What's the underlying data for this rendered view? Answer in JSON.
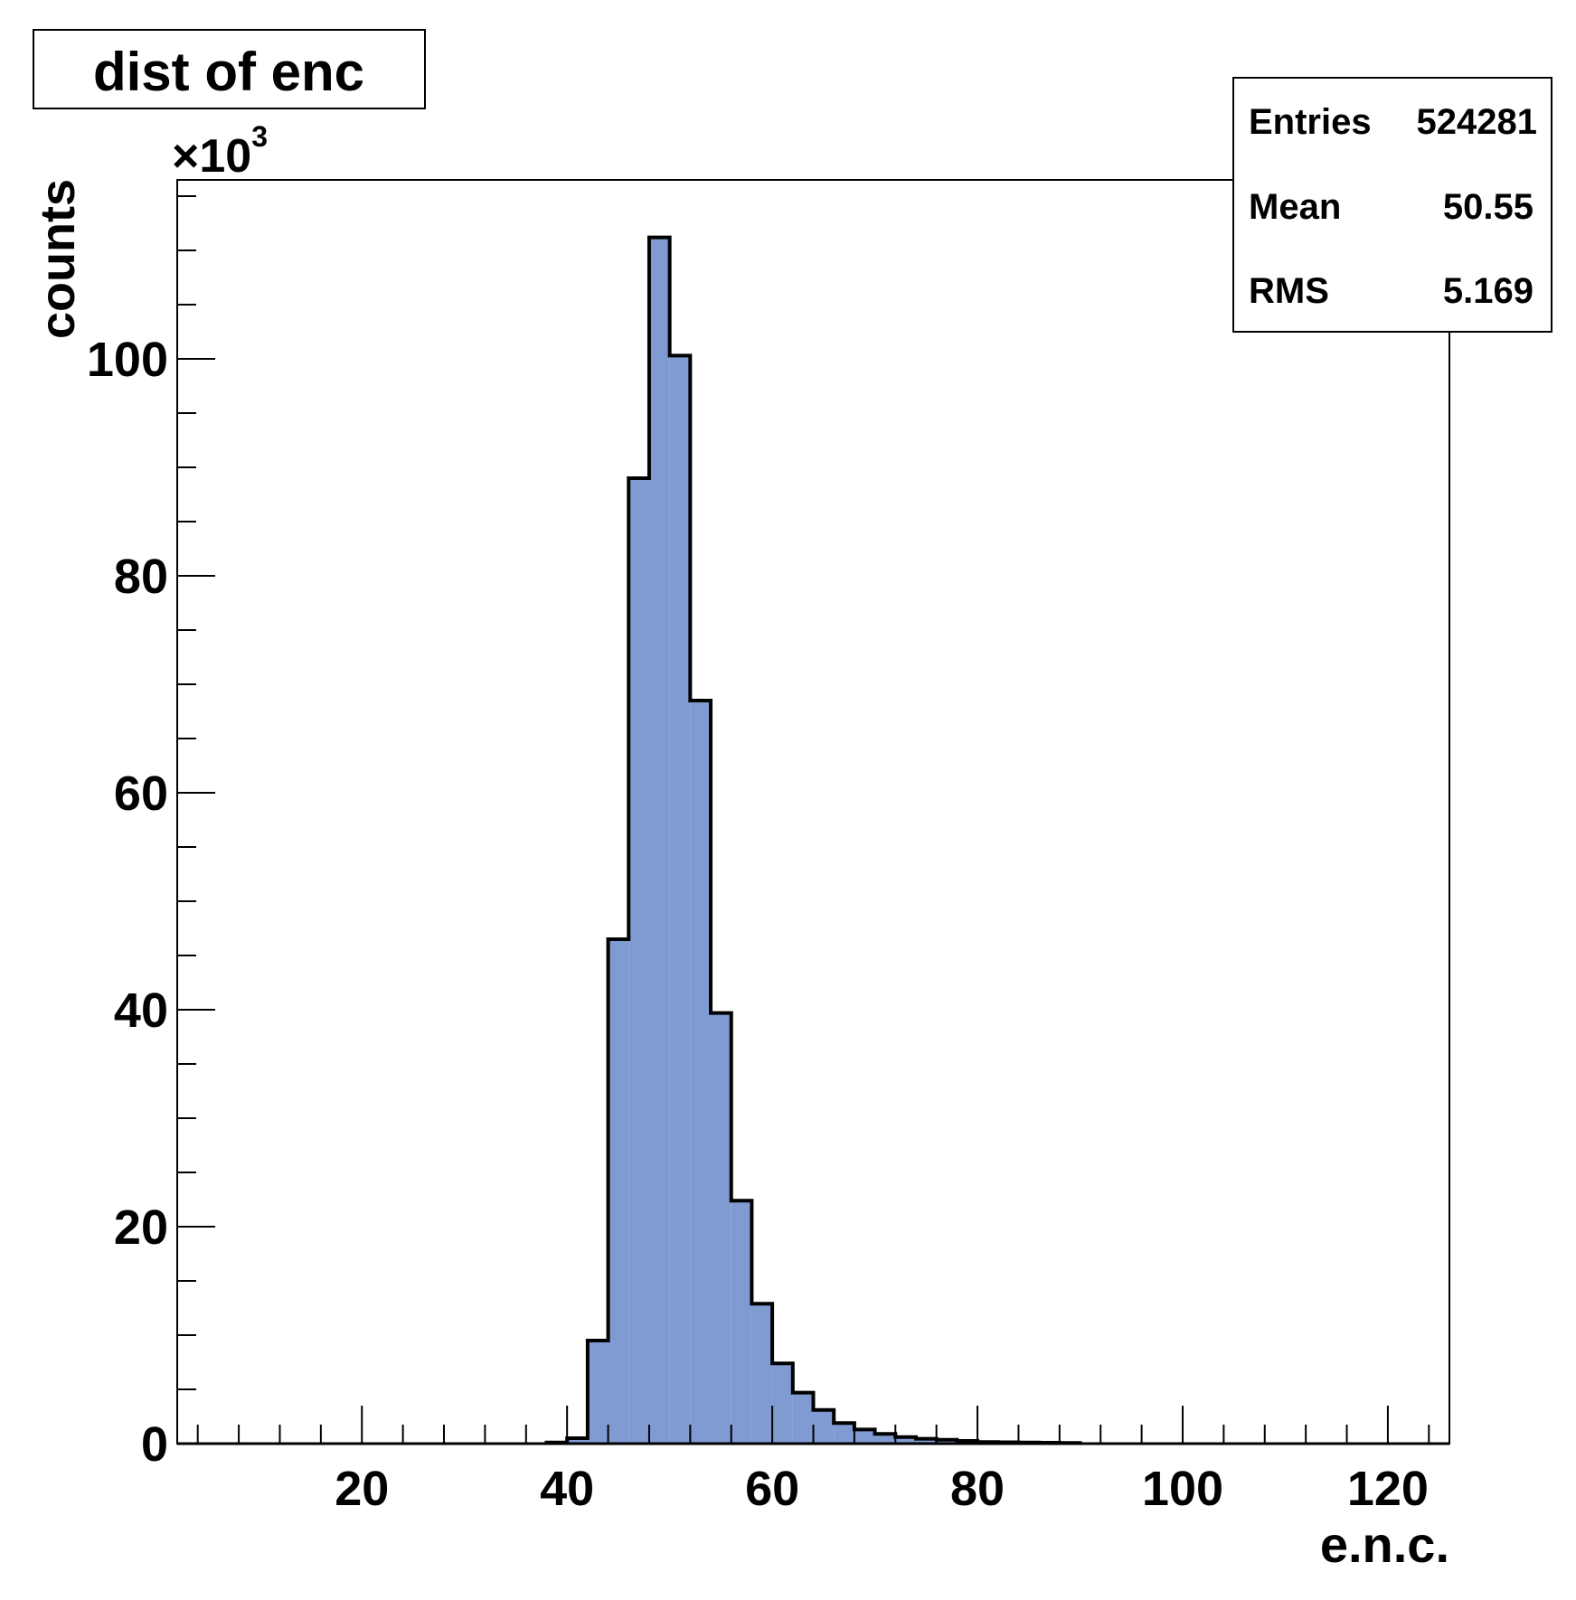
{
  "chart_data": {
    "type": "bar",
    "title": "dist of enc",
    "xlabel": "e.n.c.",
    "ylabel": "counts",
    "y_multiplier_label": "×10",
    "y_multiplier_exponent": "3",
    "xlim": [
      2,
      126
    ],
    "ylim": [
      0,
      116.5
    ],
    "x_ticks": [
      20,
      40,
      60,
      80,
      100,
      120
    ],
    "y_ticks": [
      0,
      20,
      40,
      60,
      80,
      100
    ],
    "x_tick_labels": [
      "20",
      "40",
      "60",
      "80",
      "100",
      "120"
    ],
    "y_tick_labels": [
      "0",
      "20",
      "40",
      "60",
      "80",
      "100"
    ],
    "bins": {
      "edges": [
        38,
        40,
        42,
        44,
        46,
        48,
        50,
        52,
        54,
        56,
        58,
        60,
        62,
        64,
        66,
        68,
        70,
        72,
        74,
        76,
        78,
        80,
        82,
        84,
        86,
        88,
        90
      ],
      "counts_thousands": [
        0.1,
        0.5,
        9.5,
        46.5,
        89.0,
        111.2,
        100.3,
        68.5,
        39.7,
        22.4,
        12.9,
        7.4,
        4.7,
        3.1,
        1.9,
        1.3,
        0.9,
        0.6,
        0.45,
        0.35,
        0.25,
        0.15,
        0.12,
        0.1,
        0.08,
        0.06
      ]
    },
    "fill_color": "#7f9bd1",
    "line_color": "#000000",
    "grid": false,
    "legend": "none"
  },
  "stats": {
    "rows": [
      {
        "label": "Entries",
        "value": "524281"
      },
      {
        "label": "Mean",
        "value": "50.55"
      },
      {
        "label": "RMS",
        "value": "5.169"
      }
    ]
  }
}
